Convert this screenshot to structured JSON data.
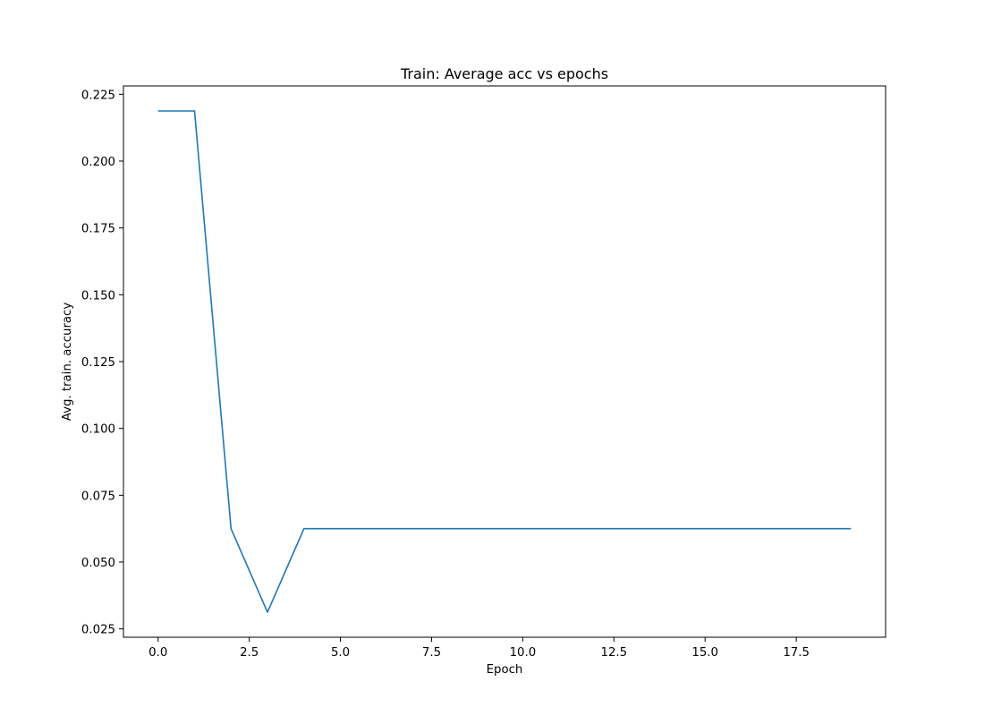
{
  "chart_data": {
    "type": "line",
    "title": "Train: Average acc vs epochs",
    "xlabel": "Epoch",
    "ylabel": "Avg. train. accuracy",
    "x": [
      0,
      1,
      2,
      3,
      4,
      5,
      6,
      7,
      8,
      9,
      10,
      11,
      12,
      13,
      14,
      15,
      16,
      17,
      18,
      19
    ],
    "series": [
      {
        "values": [
          0.21875,
          0.21875,
          0.0625,
          0.03125,
          0.0625,
          0.0625,
          0.0625,
          0.0625,
          0.0625,
          0.0625,
          0.0625,
          0.0625,
          0.0625,
          0.0625,
          0.0625,
          0.0625,
          0.0625,
          0.0625,
          0.0625,
          0.0625
        ],
        "color": "#1f77b4"
      }
    ],
    "xlim": [
      -0.95,
      19.95
    ],
    "ylim": [
      0.02188,
      0.22812
    ],
    "xticks": [
      0.0,
      2.5,
      5.0,
      7.5,
      10.0,
      12.5,
      15.0,
      17.5
    ],
    "xtick_labels": [
      "0.0",
      "2.5",
      "5.0",
      "7.5",
      "10.0",
      "12.5",
      "15.0",
      "17.5"
    ],
    "yticks": [
      0.025,
      0.05,
      0.075,
      0.1,
      0.125,
      0.15,
      0.175,
      0.2,
      0.225
    ],
    "ytick_labels": [
      "0.025",
      "0.050",
      "0.075",
      "0.100",
      "0.125",
      "0.150",
      "0.175",
      "0.200",
      "0.225"
    ],
    "grid": false,
    "legend": "none"
  }
}
